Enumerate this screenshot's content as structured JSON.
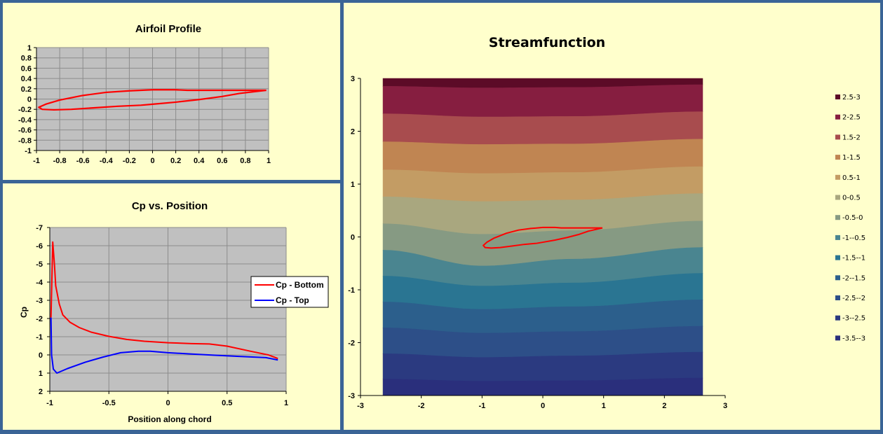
{
  "chart_data": [
    {
      "id": "airfoil",
      "type": "line",
      "title": "Airfoil Profile",
      "xlabel": "",
      "ylabel": "",
      "xlim": [
        -1,
        1
      ],
      "ylim": [
        -1,
        1
      ],
      "grid": true,
      "x_ticks": [
        "-1",
        "-0.8",
        "-0.6",
        "-0.4",
        "-0.2",
        "0",
        "0.2",
        "0.4",
        "0.6",
        "0.8",
        "1"
      ],
      "y_ticks": [
        "1",
        "0.8",
        "0.6",
        "0.4",
        "0.2",
        "0",
        "-0.2",
        "-0.4",
        "-0.6",
        "-0.8",
        "-1"
      ],
      "series": [
        {
          "name": "Airfoil",
          "color": "#ff0000",
          "points": [
            [
              0.98,
              0.17
            ],
            [
              0.8,
              0.17
            ],
            [
              0.6,
              0.17
            ],
            [
              0.4,
              0.17
            ],
            [
              0.3,
              0.17
            ],
            [
              0.2,
              0.18
            ],
            [
              0.0,
              0.18
            ],
            [
              -0.2,
              0.16
            ],
            [
              -0.4,
              0.13
            ],
            [
              -0.6,
              0.07
            ],
            [
              -0.8,
              -0.02
            ],
            [
              -0.92,
              -0.1
            ],
            [
              -0.98,
              -0.16
            ],
            [
              -0.95,
              -0.2
            ],
            [
              -0.85,
              -0.21
            ],
            [
              -0.7,
              -0.2
            ],
            [
              -0.5,
              -0.17
            ],
            [
              -0.3,
              -0.14
            ],
            [
              -0.1,
              -0.12
            ],
            [
              0.0,
              -0.1
            ],
            [
              0.2,
              -0.06
            ],
            [
              0.4,
              -0.01
            ],
            [
              0.6,
              0.05
            ],
            [
              0.75,
              0.11
            ],
            [
              0.9,
              0.15
            ],
            [
              0.98,
              0.17
            ]
          ]
        }
      ]
    },
    {
      "id": "cp",
      "type": "line",
      "title": "Cp vs. Position",
      "xlabel": "Position along chord",
      "ylabel": "Cp",
      "xlim": [
        -1,
        1
      ],
      "ylim": [
        -7,
        2
      ],
      "y_reversed": true,
      "grid": true,
      "legend_position": "right",
      "x_ticks": [
        "-1",
        "-0.5",
        "0",
        "0.5",
        "1"
      ],
      "y_ticks": [
        "-7",
        "-6",
        "-5",
        "-4",
        "-3",
        "-2",
        "-1",
        "0",
        "1",
        "2"
      ],
      "series": [
        {
          "name": "Cp - Bottom",
          "color": "#ff0000",
          "points": [
            [
              -0.99,
              -2.05
            ],
            [
              -0.975,
              -6.2
            ],
            [
              -0.96,
              -4.9
            ],
            [
              -0.95,
              -3.8
            ],
            [
              -0.92,
              -2.8
            ],
            [
              -0.89,
              -2.2
            ],
            [
              -0.83,
              -1.8
            ],
            [
              -0.75,
              -1.5
            ],
            [
              -0.65,
              -1.25
            ],
            [
              -0.5,
              -1.02
            ],
            [
              -0.35,
              -0.85
            ],
            [
              -0.2,
              -0.75
            ],
            [
              0.0,
              -0.67
            ],
            [
              0.2,
              -0.62
            ],
            [
              0.35,
              -0.6
            ],
            [
              0.5,
              -0.48
            ],
            [
              0.7,
              -0.2
            ],
            [
              0.85,
              0.0
            ],
            [
              0.93,
              0.2
            ]
          ]
        },
        {
          "name": "Cp - Top",
          "color": "#0000ff",
          "points": [
            [
              -0.99,
              -2.05
            ],
            [
              -0.985,
              0.0
            ],
            [
              -0.97,
              0.78
            ],
            [
              -0.94,
              1.0
            ],
            [
              -0.85,
              0.75
            ],
            [
              -0.7,
              0.4
            ],
            [
              -0.55,
              0.12
            ],
            [
              -0.4,
              -0.12
            ],
            [
              -0.25,
              -0.2
            ],
            [
              -0.15,
              -0.2
            ],
            [
              0.0,
              -0.12
            ],
            [
              0.2,
              -0.05
            ],
            [
              0.4,
              0.02
            ],
            [
              0.6,
              0.08
            ],
            [
              0.83,
              0.15
            ],
            [
              0.93,
              0.28
            ]
          ]
        }
      ]
    },
    {
      "id": "streamfunction",
      "type": "heatmap",
      "title": "Streamfunction",
      "xlim": [
        -3,
        3
      ],
      "ylim": [
        -3,
        3
      ],
      "contour_xlim": [
        -2.63,
        2.63
      ],
      "x_ticks": [
        "-3",
        "-2",
        "-1",
        "0",
        "1",
        "2",
        "3"
      ],
      "y_ticks": [
        "3",
        "2",
        "1",
        "0",
        "-1",
        "-2",
        "-3"
      ],
      "legend_position": "right",
      "legend": [
        {
          "label": "2.5-3",
          "color": "#5c0b27"
        },
        {
          "label": "2-2.5",
          "color": "#861e40"
        },
        {
          "label": "1.5-2",
          "color": "#a84c4e"
        },
        {
          "label": "1-1.5",
          "color": "#c08552"
        },
        {
          "label": "0.5-1",
          "color": "#c39c64"
        },
        {
          "label": "0-0.5",
          "color": "#a9a77f"
        },
        {
          "label": "-0.5-0",
          "color": "#869a83"
        },
        {
          "label": "-1--0.5",
          "color": "#4a8590"
        },
        {
          "label": "-1.5--1",
          "color": "#2a7592"
        },
        {
          "label": "-2--1.5",
          "color": "#2c5f8c"
        },
        {
          "label": "-2.5--2",
          "color": "#2d4f88"
        },
        {
          "label": "-3--2.5",
          "color": "#2b3a80"
        },
        {
          "label": "-3.5--3",
          "color": "#2a2f7c"
        }
      ],
      "contour_levels_y": {
        "comment_units": "streamfunction contour heights in y data units at x = -2.63, -1, 0.5, 2.63",
        "x": [
          -2.63,
          -1.0,
          0.5,
          2.63
        ],
        "levels": [
          {
            "value": 3.0,
            "y": [
              2.85,
              2.82,
              2.83,
              2.88
            ]
          },
          {
            "value": 2.5,
            "y": [
              2.33,
              2.27,
              2.28,
              2.37
            ]
          },
          {
            "value": 2.0,
            "y": [
              1.8,
              1.75,
              1.76,
              1.85
            ]
          },
          {
            "value": 1.5,
            "y": [
              1.27,
              1.2,
              1.22,
              1.33
            ]
          },
          {
            "value": 1.0,
            "y": [
              0.76,
              0.67,
              0.7,
              0.82
            ]
          },
          {
            "value": 0.5,
            "y": [
              0.25,
              0.05,
              0.12,
              0.3
            ]
          },
          {
            "value": 0.0,
            "y": [
              -0.25,
              -0.55,
              -0.42,
              -0.2
            ]
          },
          {
            "value": -0.5,
            "y": [
              -0.74,
              -0.93,
              -0.87,
              -0.69
            ]
          },
          {
            "value": -1.0,
            "y": [
              -1.23,
              -1.37,
              -1.32,
              -1.19
            ]
          },
          {
            "value": -1.5,
            "y": [
              -1.72,
              -1.82,
              -1.79,
              -1.69
            ]
          },
          {
            "value": -2.0,
            "y": [
              -2.21,
              -2.28,
              -2.25,
              -2.18
            ]
          },
          {
            "value": -2.5,
            "y": [
              -2.69,
              -2.73,
              -2.72,
              -2.67
            ]
          }
        ]
      },
      "airfoil_overlay_color": "#ff0000"
    }
  ]
}
